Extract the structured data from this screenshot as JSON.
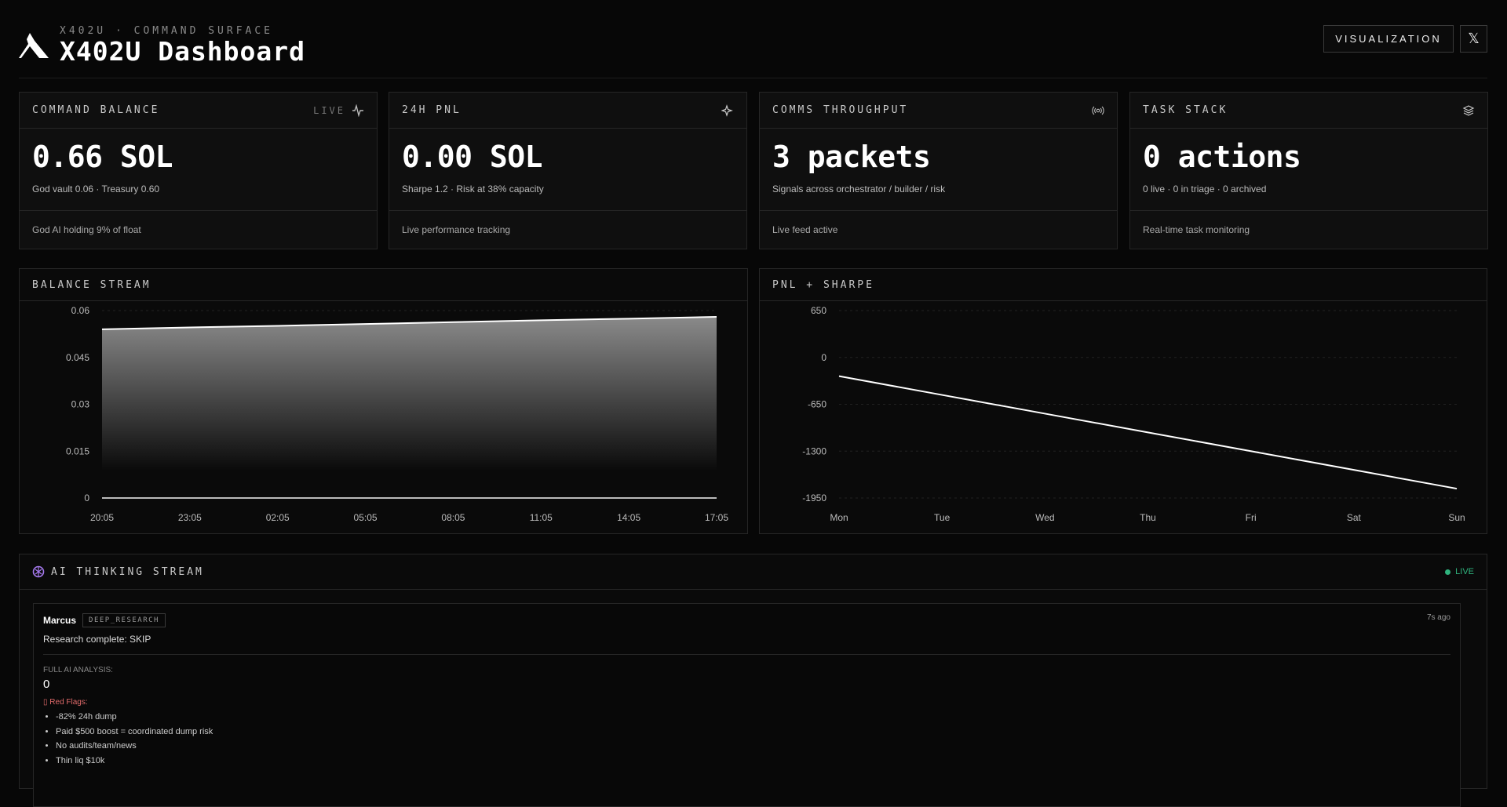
{
  "header": {
    "subtitle": "X402U · COMMAND SURFACE",
    "title": "X402U Dashboard",
    "visualization_label": "VISUALIZATION",
    "x_label": "𝕏"
  },
  "cards": [
    {
      "title": "COMMAND BALANCE",
      "badge": "LIVE",
      "icon": "activity-icon",
      "value": "0.66 SOL",
      "detail": "God vault 0.06 · Treasury 0.60",
      "footer": "God AI holding 9% of float"
    },
    {
      "title": "24H PNL",
      "icon": "sparkle-icon",
      "value": "0.00 SOL",
      "detail": "Sharpe 1.2 · Risk at 38% capacity",
      "footer": "Live performance tracking"
    },
    {
      "title": "COMMS THROUGHPUT",
      "icon": "broadcast-icon",
      "value": "3 packets",
      "detail": "Signals across orchestrator / builder / risk",
      "footer": "Live feed active"
    },
    {
      "title": "TASK STACK",
      "icon": "layers-icon",
      "value": "0 actions",
      "detail": "0 live · 0 in triage · 0 archived",
      "footer": "Real-time task monitoring"
    }
  ],
  "chart_data": [
    {
      "type": "area",
      "title": "BALANCE STREAM",
      "x": [
        "20:05",
        "23:05",
        "02:05",
        "05:05",
        "08:05",
        "11:05",
        "14:05",
        "17:05"
      ],
      "series": [
        {
          "values": [
            0.054,
            0.0546,
            0.0551,
            0.0557,
            0.0563,
            0.0569,
            0.0574,
            0.058
          ]
        },
        {
          "values": [
            0,
            0,
            0,
            0,
            0,
            0,
            0,
            0
          ]
        }
      ],
      "yticks": [
        "0",
        "0.015",
        "0.03",
        "0.045",
        "0.06"
      ],
      "ylim": [
        0,
        0.06
      ],
      "grid": true
    },
    {
      "type": "line",
      "title": "PNL + SHARPE",
      "x": [
        "Mon",
        "Tue",
        "Wed",
        "Thu",
        "Fri",
        "Sat",
        "Sun"
      ],
      "series": [
        {
          "values": [
            -260,
            -520,
            -780,
            -1040,
            -1300,
            -1560,
            -1820
          ]
        }
      ],
      "yticks": [
        "650",
        "0",
        "-650",
        "-1300",
        "-1950"
      ],
      "ylim": [
        -1950,
        650
      ],
      "grid": true
    }
  ],
  "stream": {
    "title": "AI THINKING STREAM",
    "live": "LIVE",
    "live_color": "#2fb37e",
    "entry": {
      "agent": "Marcus",
      "tag": "DEEP_RESEARCH",
      "time": "7s ago",
      "summary": "Research complete: SKIP",
      "analysis_label": "FULL AI ANALYSIS:",
      "analysis_value": "0",
      "flags_label": "▯ Red Flags:",
      "flags": [
        "-82% 24h dump",
        "Paid $500 boost = coordinated dump risk",
        "No audits/team/news",
        "Thin liq $10k"
      ]
    }
  }
}
